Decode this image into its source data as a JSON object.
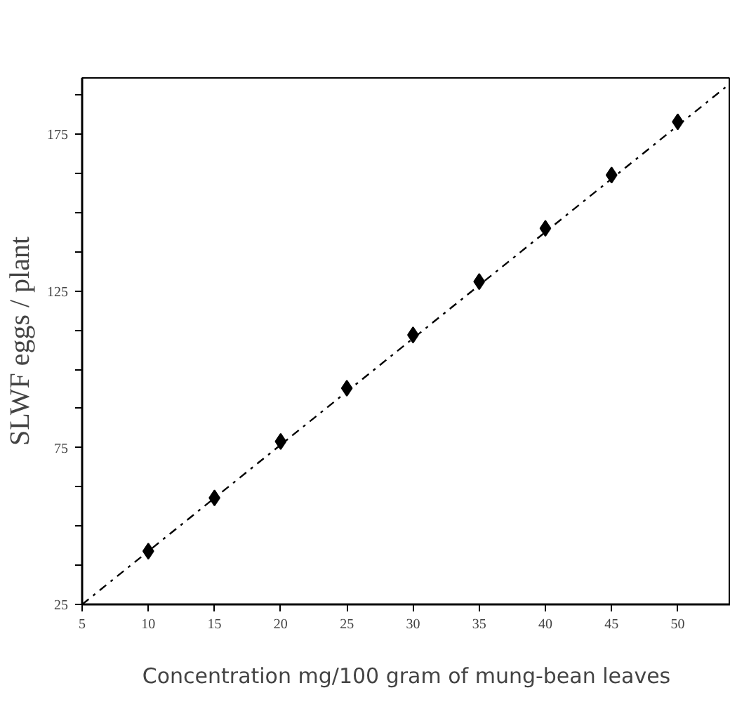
{
  "chart_data": {
    "type": "scatter",
    "xlabel": "Concentration mg/100 gram of mung-bean leaves",
    "ylabel": "SLWF eggs / plant",
    "x": [
      10,
      15,
      20,
      25,
      30,
      35,
      40,
      45,
      50
    ],
    "series": [
      {
        "color": "#000000",
        "marker": "diamond",
        "values": [
          42,
          59,
          77,
          94,
          111,
          128,
          145,
          162,
          179
        ]
      },
      {
        "type": "line",
        "color": "#000000",
        "marker": "none",
        "line_style": "dashed",
        "x": [
          5,
          53.6
        ],
        "values": [
          25,
          190
        ]
      }
    ],
    "xlim": [
      5,
      54
    ],
    "ylim": [
      25,
      193
    ],
    "xticks": [
      5,
      10,
      15,
      20,
      25,
      30,
      35,
      40,
      45,
      50
    ],
    "yticks": [
      25,
      {
        "value": 37.5,
        "label": null
      },
      {
        "value": 50,
        "label": null
      },
      {
        "value": 62.5,
        "label": null
      },
      75,
      {
        "value": 87.5,
        "label": null
      },
      {
        "value": 100,
        "label": null
      },
      {
        "value": 112.5,
        "label": null
      },
      125,
      {
        "value": 137.5,
        "label": null
      },
      {
        "value": 150,
        "label": null
      },
      {
        "value": 162.5,
        "label": null
      },
      175,
      {
        "value": 187.5,
        "label": null
      }
    ],
    "grid": false
  }
}
